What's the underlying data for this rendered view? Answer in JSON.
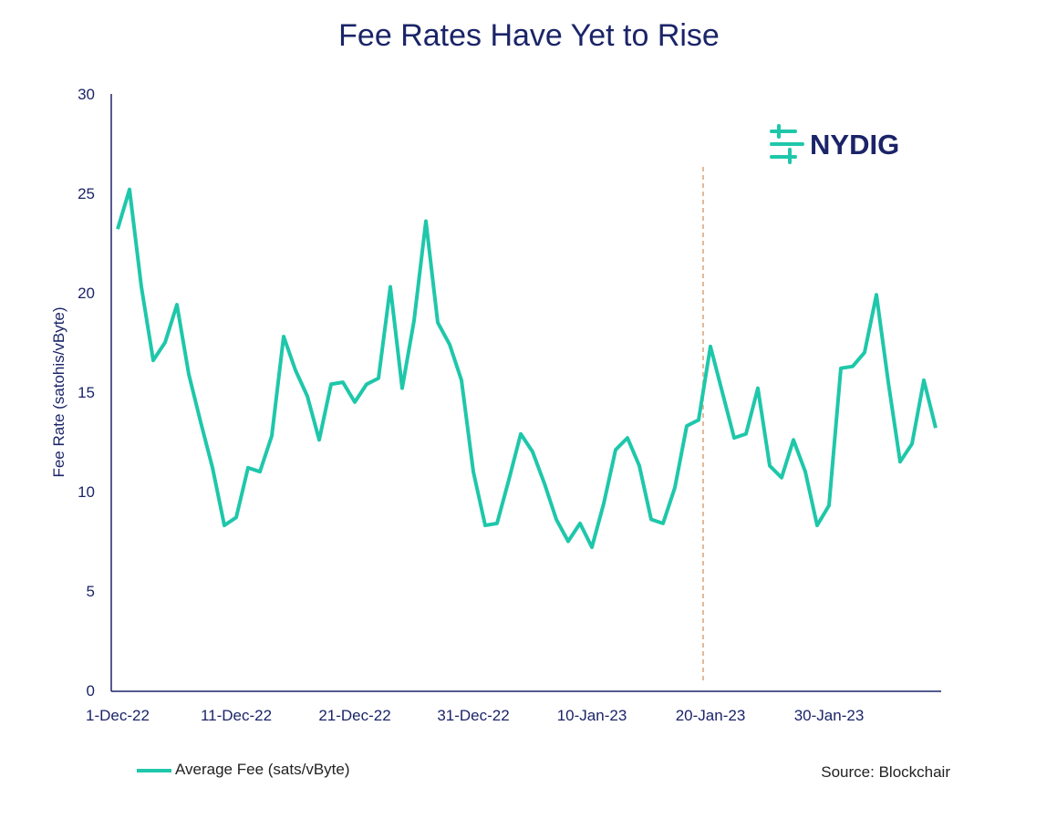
{
  "chart_data": {
    "type": "line",
    "title": "Fee Rates Have Yet to Rise",
    "ylabel": "Fee Rate (satohis/vByte)",
    "xlabel": "",
    "ylim": [
      0,
      30
    ],
    "yticks": [
      0,
      5,
      10,
      15,
      20,
      25,
      30
    ],
    "xtick_labels": [
      "1-Dec-22",
      "11-Dec-22",
      "21-Dec-22",
      "31-Dec-22",
      "10-Jan-23",
      "20-Jan-23",
      "30-Jan-23"
    ],
    "x_start": "2022-12-01",
    "x_end": "2023-02-08",
    "grid": false,
    "legend_position": "bottom-left",
    "series": [
      {
        "name": "Average Fee (sats/vByte)",
        "color": "#1fc7aa",
        "values": [
          23.2,
          25.2,
          20.3,
          16.6,
          17.5,
          19.4,
          15.9,
          13.5,
          11.2,
          8.3,
          8.7,
          11.2,
          11.0,
          12.8,
          17.8,
          16.1,
          14.8,
          12.6,
          15.4,
          15.5,
          14.5,
          15.4,
          15.7,
          20.3,
          15.2,
          18.6,
          23.6,
          18.5,
          17.4,
          15.6,
          11.0,
          8.3,
          8.4,
          10.6,
          12.9,
          12.0,
          10.4,
          8.6,
          7.5,
          8.4,
          7.2,
          9.4,
          12.1,
          12.7,
          11.3,
          8.6,
          8.4,
          10.2,
          13.3,
          13.6,
          17.3,
          15.0,
          12.7,
          12.9,
          15.2,
          11.3,
          10.7,
          12.6,
          11.0,
          8.3,
          9.3,
          16.2,
          16.3,
          17.0,
          19.9,
          15.5,
          11.5,
          12.4,
          15.6,
          13.2
        ]
      }
    ],
    "annotations": [
      {
        "type": "vertical-dashed-line",
        "x": "2023-01-19",
        "color": "#d9a27a"
      }
    ],
    "source": "Source: Blockchair",
    "logo_text": "NYDIG",
    "colors": {
      "title": "#1b2468",
      "axis": "#1b2468",
      "logo_icon": "#1fc7aa"
    }
  }
}
